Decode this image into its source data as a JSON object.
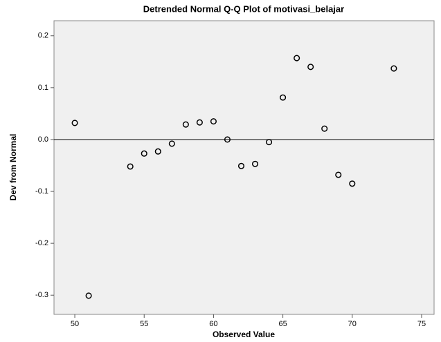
{
  "chart_data": {
    "type": "scatter",
    "title": "Detrended Normal Q-Q Plot of motivasi_belajar",
    "x_label": "Observed Value",
    "y_label": "Dev from Normal",
    "x": [
      50,
      51,
      54,
      55,
      56,
      57,
      58,
      59,
      60,
      61,
      62,
      63,
      64,
      65,
      66,
      67,
      68,
      69,
      70,
      73
    ],
    "values": [
      0.032,
      -0.301,
      -0.052,
      -0.027,
      -0.023,
      -0.008,
      0.029,
      0.033,
      0.035,
      0.0,
      -0.051,
      -0.047,
      -0.005,
      0.081,
      0.157,
      0.14,
      0.021,
      -0.068,
      -0.085,
      0.137
    ],
    "color": "#000000",
    "reference_line": 0,
    "xlim": [
      48.5,
      75.9
    ],
    "ylim": [
      -0.337,
      0.229
    ],
    "xticks": [
      50,
      55,
      60,
      65,
      70,
      75
    ],
    "yticks": [
      0.2,
      0.1,
      {
        "value": 0,
        "label": "0.0"
      },
      -0.1,
      -0.2,
      -0.3
    ]
  }
}
